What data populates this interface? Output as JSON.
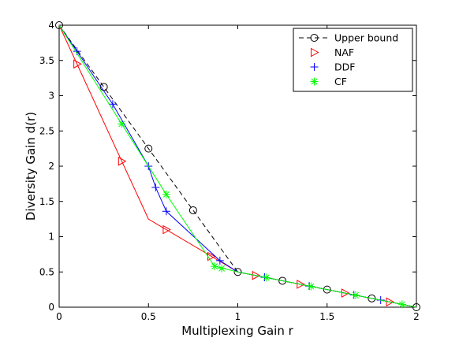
{
  "chart_data": {
    "type": "line",
    "title": "",
    "xlabel": "Multiplexing Gain r",
    "ylabel": "Diversity Gain d(r)",
    "xlim": [
      0,
      2
    ],
    "ylim": [
      0,
      4
    ],
    "xticks": [
      0,
      0.5,
      1,
      1.5,
      2
    ],
    "xtick_labels": [
      "0",
      "0.5",
      "1",
      "1.5",
      "2"
    ],
    "yticks": [
      0,
      0.5,
      1,
      1.5,
      2,
      2.5,
      3,
      3.5,
      4
    ],
    "ytick_labels": [
      "0",
      "0.5",
      "1",
      "1.5",
      "2",
      "2.5",
      "3",
      "3.5",
      "4"
    ],
    "grid": false,
    "legend_position": "top-right",
    "series": [
      {
        "name": "Upper bound",
        "color": "#000000",
        "line_style": "dashed",
        "marker": "circle",
        "line_points": [
          [
            0,
            4
          ],
          [
            0.5,
            2.25
          ],
          [
            1,
            0.5
          ],
          [
            2,
            0
          ]
        ],
        "marker_points": [
          [
            0,
            4
          ],
          [
            0.25,
            3.125
          ],
          [
            0.5,
            2.25
          ],
          [
            0.75,
            1.375
          ],
          [
            1,
            0.5
          ],
          [
            1.25,
            0.375
          ],
          [
            1.5,
            0.25
          ],
          [
            1.75,
            0.125
          ],
          [
            2,
            0
          ]
        ]
      },
      {
        "name": "NAF",
        "color": "#ff0000",
        "line_style": "solid",
        "marker": "triangle-right",
        "line_points": [
          [
            0,
            4
          ],
          [
            0.5,
            1.25
          ],
          [
            1,
            0.5
          ],
          [
            2,
            0
          ]
        ],
        "marker_points": [
          [
            0.1,
            3.45
          ],
          [
            0.35,
            2.07
          ],
          [
            0.6,
            1.1
          ],
          [
            0.85,
            0.72
          ],
          [
            1.1,
            0.45
          ],
          [
            1.35,
            0.325
          ],
          [
            1.6,
            0.2
          ],
          [
            1.85,
            0.075
          ]
        ]
      },
      {
        "name": "DDF",
        "color": "#0000ff",
        "line_style": "solid",
        "marker": "plus",
        "line_points": [
          [
            0,
            4
          ],
          [
            0.1,
            3.63
          ],
          [
            0.3,
            2.88
          ],
          [
            0.5,
            2.0
          ],
          [
            0.54,
            1.7
          ],
          [
            0.6,
            1.36
          ],
          [
            0.9,
            0.66
          ],
          [
            1,
            0.5
          ],
          [
            2,
            0
          ]
        ],
        "marker_points": [
          [
            0.1,
            3.63
          ],
          [
            0.3,
            2.88
          ],
          [
            0.5,
            2.0
          ],
          [
            0.54,
            1.7
          ],
          [
            0.6,
            1.36
          ],
          [
            0.9,
            0.66
          ],
          [
            1.15,
            0.425
          ],
          [
            1.4,
            0.3
          ],
          [
            1.65,
            0.175
          ],
          [
            1.8,
            0.1
          ]
        ]
      },
      {
        "name": "CF",
        "color": "#00ff00",
        "line_style": "solid",
        "marker": "asterisk",
        "line_points": [
          [
            0,
            4
          ],
          [
            0.35,
            2.6
          ],
          [
            0.6,
            1.6
          ],
          [
            0.87,
            0.58
          ],
          [
            1,
            0.5
          ],
          [
            2,
            0
          ]
        ],
        "marker_points": [
          [
            0.35,
            2.6
          ],
          [
            0.6,
            1.6
          ],
          [
            0.87,
            0.58
          ],
          [
            0.91,
            0.55
          ],
          [
            1.16,
            0.42
          ],
          [
            1.41,
            0.295
          ],
          [
            1.66,
            0.17
          ],
          [
            1.92,
            0.04
          ]
        ]
      }
    ]
  }
}
